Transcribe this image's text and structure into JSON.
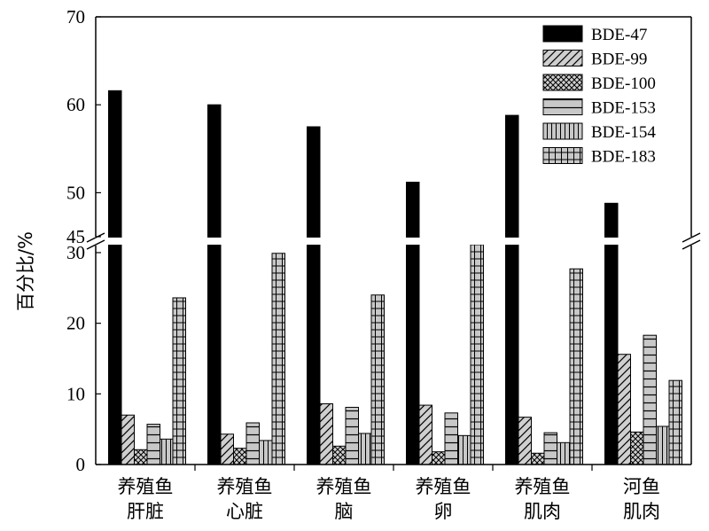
{
  "chart_data": {
    "type": "bar",
    "ylabel": "百分比/%",
    "categories": [
      [
        "养殖鱼",
        "肝脏"
      ],
      [
        "养殖鱼",
        "心脏"
      ],
      [
        "养殖鱼",
        "脑"
      ],
      [
        "养殖鱼",
        "卵"
      ],
      [
        "养殖鱼",
        "肌肉"
      ],
      [
        "河鱼",
        "肌肉"
      ]
    ],
    "series": [
      {
        "name": "BDE-47",
        "pattern": "solid",
        "values": [
          61.6,
          60.0,
          57.5,
          51.2,
          58.8,
          48.8
        ]
      },
      {
        "name": "BDE-99",
        "pattern": "diagonal",
        "values": [
          7.0,
          4.3,
          8.6,
          8.4,
          6.7,
          15.6
        ]
      },
      {
        "name": "BDE-100",
        "pattern": "cross",
        "values": [
          2.1,
          2.3,
          2.6,
          1.8,
          1.6,
          4.6
        ]
      },
      {
        "name": "BDE-153",
        "pattern": "hlines",
        "values": [
          5.7,
          5.9,
          8.1,
          7.3,
          4.5,
          18.3
        ]
      },
      {
        "name": "BDE-154",
        "pattern": "vlines",
        "values": [
          3.6,
          3.4,
          4.4,
          4.1,
          3.1,
          5.4
        ]
      },
      {
        "name": "BDE-183",
        "pattern": "grid",
        "values": [
          23.6,
          29.9,
          24.0,
          31.5,
          27.7,
          11.9
        ]
      }
    ],
    "axis_break": {
      "lower": [
        0,
        31
      ],
      "upper": [
        45,
        70
      ]
    },
    "yticks_lower": [
      0,
      10,
      20,
      30
    ],
    "yticks_upper": [
      45,
      50,
      60,
      70
    ],
    "legend_position": "top-right",
    "grid": false,
    "colors": {
      "bar_fill": "#c8c8c8",
      "solid": "#000000",
      "stroke": "#000000"
    }
  }
}
